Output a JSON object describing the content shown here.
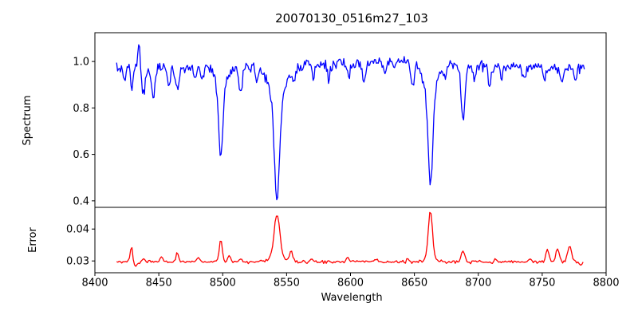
{
  "title": "20070130_0516m27_103",
  "chart_data": [
    {
      "type": "line",
      "series_name": "spectrum",
      "color": "#0000ff",
      "ylabel": "Spectrum",
      "xlim": [
        8400,
        8800
      ],
      "ylim": [
        0.372,
        1.124
      ],
      "yticks": [
        1.0,
        0.8,
        0.6,
        0.4
      ],
      "ytick_labels": [
        "1.0",
        "0.8",
        "0.6",
        "0.4"
      ],
      "grid": false,
      "legend": false,
      "data_wavelength_range": [
        8417,
        8783
      ],
      "continuum_level": 0.98,
      "absorption_lines": [
        {
          "wavelength": 8498,
          "min_flux": 0.6
        },
        {
          "wavelength": 8542,
          "min_flux": 0.42
        },
        {
          "wavelength": 8662,
          "min_flux": 0.48
        },
        {
          "wavelength": 8688,
          "min_flux": 0.75
        }
      ],
      "emission_spike": {
        "wavelength": 8434,
        "max_flux": 1.09
      },
      "gen": {
        "start": 8417,
        "end": 8783,
        "step": 0.75,
        "baseline": 0.975,
        "noise": 0.028,
        "seed": 20070130,
        "features": [
          {
            "c": 8423.0,
            "w": 1.2,
            "a": -0.05
          },
          {
            "c": 8429.0,
            "w": 1.0,
            "a": -0.09
          },
          {
            "c": 8434.5,
            "w": 0.8,
            "a": 0.105
          },
          {
            "c": 8438.0,
            "w": 1.2,
            "a": -0.115
          },
          {
            "c": 8445.5,
            "w": 1.4,
            "a": -0.125
          },
          {
            "c": 8458.0,
            "w": 1.2,
            "a": -0.07
          },
          {
            "c": 8464.5,
            "w": 1.3,
            "a": -0.105
          },
          {
            "c": 8478.0,
            "w": 1.0,
            "a": -0.05
          },
          {
            "c": 8484.0,
            "w": 1.0,
            "a": -0.055
          },
          {
            "c": 8498.5,
            "w": 1.6,
            "a": -0.28
          },
          {
            "c": 8498.5,
            "w": 4.0,
            "a": -0.1
          },
          {
            "c": 8514.0,
            "w": 1.4,
            "a": -0.105
          },
          {
            "c": 8526.5,
            "w": 1.1,
            "a": -0.06
          },
          {
            "c": 8542.5,
            "w": 2.0,
            "a": -0.42
          },
          {
            "c": 8542.5,
            "w": 6.0,
            "a": -0.15
          },
          {
            "c": 8556.0,
            "w": 1.1,
            "a": -0.06
          },
          {
            "c": 8571.0,
            "w": 1.0,
            "a": -0.05
          },
          {
            "c": 8583.0,
            "w": 1.2,
            "a": -0.06
          },
          {
            "c": 8598.5,
            "w": 1.2,
            "a": -0.07
          },
          {
            "c": 8610.5,
            "w": 1.2,
            "a": -0.09
          },
          {
            "c": 8625.0,
            "w": 45.0,
            "a": 0.022
          },
          {
            "c": 8627.0,
            "w": 1.0,
            "a": -0.05
          },
          {
            "c": 8648.5,
            "w": 1.2,
            "a": -0.1
          },
          {
            "c": 8662.5,
            "w": 1.8,
            "a": -0.38
          },
          {
            "c": 8662.5,
            "w": 5.0,
            "a": -0.13
          },
          {
            "c": 8674.0,
            "w": 1.1,
            "a": -0.055
          },
          {
            "c": 8688.0,
            "w": 1.5,
            "a": -0.23
          },
          {
            "c": 8697.0,
            "w": 1.0,
            "a": -0.06
          },
          {
            "c": 8709.0,
            "w": 1.2,
            "a": -0.08
          },
          {
            "c": 8718.0,
            "w": 1.0,
            "a": -0.06
          },
          {
            "c": 8736.0,
            "w": 1.1,
            "a": -0.06
          },
          {
            "c": 8752.0,
            "w": 1.0,
            "a": -0.05
          },
          {
            "c": 8765.0,
            "w": 1.2,
            "a": -0.07
          },
          {
            "c": 8776.0,
            "w": 1.1,
            "a": -0.06
          }
        ]
      }
    },
    {
      "type": "line",
      "series_name": "error",
      "color": "#ff0000",
      "ylabel": "Error",
      "xlabel": "Wavelength",
      "xlim": [
        8400,
        8800
      ],
      "ylim": [
        0.0263,
        0.0468
      ],
      "yticks": [
        0.04,
        0.03
      ],
      "ytick_labels": [
        "0.04",
        "0.03"
      ],
      "xticks": [
        8400,
        8450,
        8500,
        8550,
        8600,
        8650,
        8700,
        8750,
        8800
      ],
      "xtick_labels": [
        "8400",
        "8450",
        "8500",
        "8550",
        "8600",
        "8650",
        "8700",
        "8750",
        "8800"
      ],
      "grid": false,
      "legend": false,
      "data_wavelength_range": [
        8417,
        8782
      ],
      "baseline_level": 0.0297,
      "error_peaks": [
        {
          "wavelength": 8428,
          "value": 0.0345
        },
        {
          "wavelength": 8464,
          "value": 0.0325
        },
        {
          "wavelength": 8498,
          "value": 0.037
        },
        {
          "wavelength": 8542,
          "value": 0.0445
        },
        {
          "wavelength": 8553,
          "value": 0.033
        },
        {
          "wavelength": 8662,
          "value": 0.046
        },
        {
          "wavelength": 8688,
          "value": 0.0335
        },
        {
          "wavelength": 8754,
          "value": 0.034
        },
        {
          "wavelength": 8762,
          "value": 0.0345
        },
        {
          "wavelength": 8771,
          "value": 0.0355
        }
      ],
      "gen": {
        "start": 8417,
        "end": 8782,
        "step": 1.0,
        "baseline": 0.0297,
        "noise": 0.0006,
        "seed": 516103,
        "features": [
          {
            "c": 8428.5,
            "w": 1.0,
            "a": 0.0048
          },
          {
            "c": 8432.0,
            "w": 1.2,
            "a": -0.0012
          },
          {
            "c": 8438.0,
            "w": 0.9,
            "a": 0.0012
          },
          {
            "c": 8452.0,
            "w": 0.9,
            "a": 0.0018
          },
          {
            "c": 8464.5,
            "w": 1.1,
            "a": 0.0026
          },
          {
            "c": 8481.0,
            "w": 0.9,
            "a": 0.0012
          },
          {
            "c": 8498.5,
            "w": 1.2,
            "a": 0.007
          },
          {
            "c": 8505.0,
            "w": 1.0,
            "a": 0.002
          },
          {
            "c": 8514.0,
            "w": 1.0,
            "a": 0.0014
          },
          {
            "c": 8542.5,
            "w": 2.2,
            "a": 0.013
          },
          {
            "c": 8542.5,
            "w": 5.0,
            "a": 0.0018
          },
          {
            "c": 8553.5,
            "w": 1.2,
            "a": 0.0032
          },
          {
            "c": 8570.0,
            "w": 0.9,
            "a": 0.001
          },
          {
            "c": 8598.0,
            "w": 1.1,
            "a": 0.0013
          },
          {
            "c": 8620.0,
            "w": 0.9,
            "a": 0.001
          },
          {
            "c": 8645.0,
            "w": 0.9,
            "a": 0.0013
          },
          {
            "c": 8662.5,
            "w": 1.6,
            "a": 0.0152
          },
          {
            "c": 8662.5,
            "w": 4.0,
            "a": 0.001
          },
          {
            "c": 8688.0,
            "w": 1.3,
            "a": 0.0035
          },
          {
            "c": 8714.0,
            "w": 0.9,
            "a": 0.001
          },
          {
            "c": 8740.0,
            "w": 0.9,
            "a": 0.001
          },
          {
            "c": 8754.0,
            "w": 1.2,
            "a": 0.0038
          },
          {
            "c": 8762.0,
            "w": 1.3,
            "a": 0.0042
          },
          {
            "c": 8771.5,
            "w": 1.5,
            "a": 0.0048
          },
          {
            "c": 8780.0,
            "w": 1.2,
            "a": -0.0012
          }
        ]
      }
    }
  ]
}
